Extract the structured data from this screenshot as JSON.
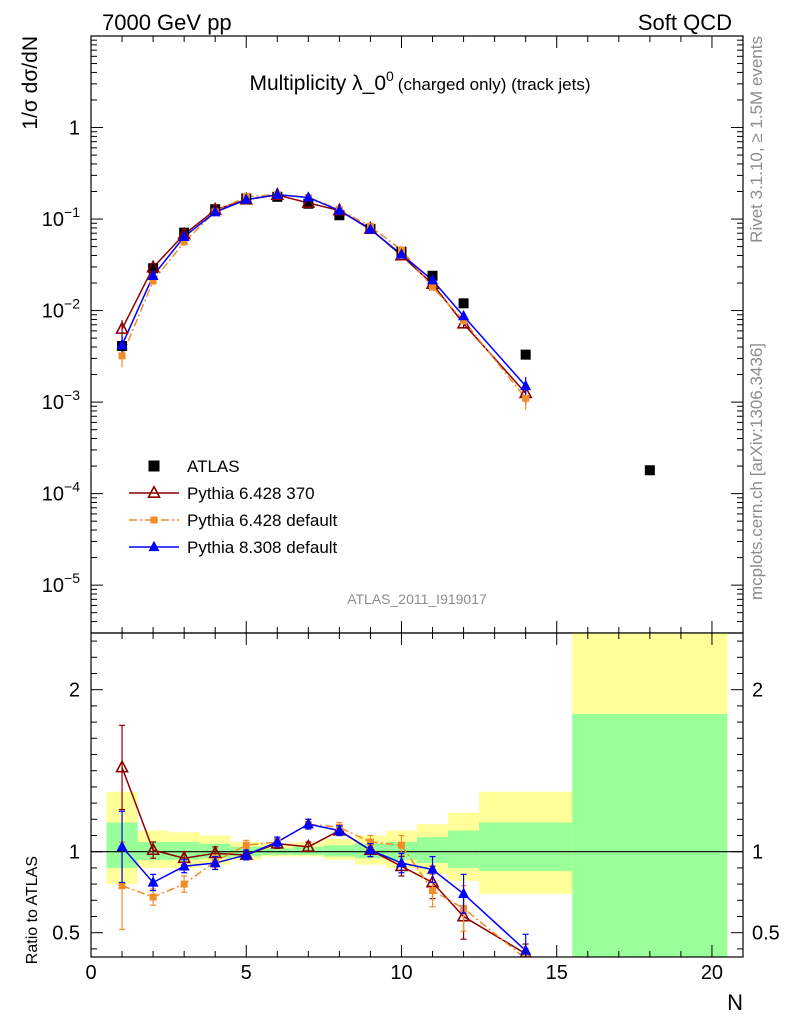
{
  "header": {
    "left": "7000 GeV pp",
    "right": "Soft QCD"
  },
  "side_labels": {
    "events": "Rivet 3.1.10, ≥ 1.5M events",
    "source": "mcplots.cern.ch [arXiv:1306.3436]"
  },
  "analysis_id": "ATLAS_2011_I919017",
  "chart_data": [
    {
      "type": "scatter",
      "panel": "main",
      "title": "Multiplicity λ_0⁰ (charged only) (track jets)",
      "title_main": "Multiplicity λ_0",
      "title_sup": "0",
      "title_paren": "(charged only) (track jets)",
      "ylabel": "1/σ dσ/dN",
      "yscale": "log",
      "ylim": [
        3e-06,
        10
      ],
      "xlim": [
        0,
        21
      ],
      "x_ticks": [
        "0",
        "5",
        "10",
        "15",
        "20"
      ],
      "y_ticks": [
        {
          "base": "10",
          "exp": "−5",
          "value": 1e-05
        },
        {
          "base": "10",
          "exp": "−4",
          "value": 0.0001
        },
        {
          "base": "10",
          "exp": "−3",
          "value": 0.001
        },
        {
          "base": "10",
          "exp": "−2",
          "value": 0.01
        },
        {
          "base": "10",
          "exp": "−1",
          "value": 0.1
        },
        {
          "base": "1",
          "exp": "",
          "value": 1
        }
      ],
      "legend_position": "middle-left",
      "series": [
        {
          "name": "ATLAS",
          "color": "#000000",
          "marker": "square",
          "x": [
            1,
            2,
            3,
            4,
            5,
            6,
            7,
            8,
            9,
            10,
            11,
            12,
            14,
            18
          ],
          "y": [
            0.0041,
            0.029,
            0.071,
            0.128,
            0.168,
            0.175,
            0.147,
            0.11,
            0.078,
            0.044,
            0.024,
            0.012,
            0.0033,
            0.00018
          ]
        },
        {
          "name": "Pythia 6.428 370",
          "color": "#8b0000",
          "marker": "open-triangle",
          "x": [
            1,
            2,
            3,
            4,
            5,
            6,
            7,
            8,
            9,
            10,
            11,
            12,
            14
          ],
          "y": [
            0.0063,
            0.0295,
            0.068,
            0.126,
            0.163,
            0.183,
            0.15,
            0.124,
            0.078,
            0.04,
            0.0195,
            0.0072,
            0.00125
          ]
        },
        {
          "name": "Pythia 6.428 default",
          "color": "#f28c28",
          "marker": "square",
          "x": [
            1,
            2,
            3,
            4,
            5,
            6,
            7,
            8,
            9,
            10,
            11,
            12,
            14
          ],
          "y": [
            0.0032,
            0.021,
            0.056,
            0.12,
            0.176,
            0.185,
            0.172,
            0.127,
            0.083,
            0.046,
            0.018,
            0.0078,
            0.0011
          ]
        },
        {
          "name": "Pythia 8.308 default",
          "color": "#0000ff",
          "marker": "triangle",
          "x": [
            1,
            2,
            3,
            4,
            5,
            6,
            7,
            8,
            9,
            10,
            11,
            12,
            14
          ],
          "y": [
            0.0042,
            0.024,
            0.064,
            0.119,
            0.163,
            0.185,
            0.172,
            0.124,
            0.077,
            0.041,
            0.0215,
            0.0087,
            0.0015
          ]
        }
      ]
    },
    {
      "type": "scatter",
      "panel": "ratio",
      "ylabel": "Ratio to ATLAS",
      "xlabel": "N",
      "ylim": [
        0.35,
        2.35
      ],
      "xlim": [
        0,
        21
      ],
      "x_ticks": [
        "0",
        "5",
        "10",
        "15",
        "20"
      ],
      "y_ticks": [
        "0.5",
        "1",
        "2"
      ],
      "bands": [
        {
          "x0": 0.5,
          "x1": 1.5,
          "y_lo": 0.8,
          "y_hi": 1.37,
          "g_lo": 0.9,
          "g_hi": 1.18
        },
        {
          "x0": 1.5,
          "x1": 2.5,
          "y_lo": 0.9,
          "y_hi": 1.13,
          "g_lo": 0.95,
          "g_hi": 1.06
        },
        {
          "x0": 2.5,
          "x1": 3.5,
          "y_lo": 0.9,
          "y_hi": 1.12,
          "g_lo": 0.95,
          "g_hi": 1.06
        },
        {
          "x0": 3.5,
          "x1": 4.5,
          "y_lo": 0.92,
          "y_hi": 1.1,
          "g_lo": 0.96,
          "g_hi": 1.05
        },
        {
          "x0": 4.5,
          "x1": 5.5,
          "y_lo": 0.95,
          "y_hi": 1.06,
          "g_lo": 0.97,
          "g_hi": 1.03
        },
        {
          "x0": 5.5,
          "x1": 6.5,
          "y_lo": 0.97,
          "y_hi": 1.05,
          "g_lo": 0.98,
          "g_hi": 1.02
        },
        {
          "x0": 6.5,
          "x1": 7.5,
          "y_lo": 0.97,
          "y_hi": 1.06,
          "g_lo": 0.98,
          "g_hi": 1.03
        },
        {
          "x0": 7.5,
          "x1": 8.5,
          "y_lo": 0.95,
          "y_hi": 1.08,
          "g_lo": 0.97,
          "g_hi": 1.04
        },
        {
          "x0": 8.5,
          "x1": 9.5,
          "y_lo": 0.92,
          "y_hi": 1.1,
          "g_lo": 0.96,
          "g_hi": 1.05
        },
        {
          "x0": 9.5,
          "x1": 10.5,
          "y_lo": 0.9,
          "y_hi": 1.13,
          "g_lo": 0.95,
          "g_hi": 1.06
        },
        {
          "x0": 10.5,
          "x1": 11.5,
          "y_lo": 0.86,
          "y_hi": 1.17,
          "g_lo": 0.93,
          "g_hi": 1.09
        },
        {
          "x0": 11.5,
          "x1": 12.5,
          "y_lo": 0.82,
          "y_hi": 1.24,
          "g_lo": 0.9,
          "g_hi": 1.13
        },
        {
          "x0": 12.5,
          "x1": 15.5,
          "y_lo": 0.74,
          "y_hi": 1.37,
          "g_lo": 0.88,
          "g_hi": 1.18
        },
        {
          "x0": 15.5,
          "x1": 20.5,
          "y_lo": 0.35,
          "y_hi": 2.35,
          "g_lo": 0.35,
          "g_hi": 1.85
        }
      ],
      "series": [
        {
          "name": "Pythia 6.428 370",
          "color": "#8b0000",
          "marker": "open-triangle",
          "x": [
            1,
            2,
            3,
            4,
            5,
            6,
            7,
            8,
            9,
            10,
            11,
            12,
            14
          ],
          "y": [
            1.52,
            1.01,
            0.96,
            0.99,
            0.98,
            1.05,
            1.03,
            1.13,
            1.01,
            0.91,
            0.81,
            0.6,
            0.37
          ],
          "err": [
            0.26,
            0.05,
            0.04,
            0.04,
            0.03,
            0.03,
            0.03,
            0.03,
            0.04,
            0.06,
            0.1,
            0.14,
            0.06
          ]
        },
        {
          "name": "Pythia 6.428 default",
          "color": "#f28c28",
          "marker": "square",
          "x": [
            1,
            2,
            3,
            4,
            5,
            6,
            7,
            8,
            9,
            10,
            11,
            12,
            14
          ],
          "y": [
            0.79,
            0.72,
            0.8,
            0.94,
            1.04,
            1.06,
            1.17,
            1.15,
            1.06,
            1.04,
            0.76,
            0.65,
            0.34
          ],
          "err": [
            0.27,
            0.05,
            0.05,
            0.04,
            0.03,
            0.03,
            0.03,
            0.03,
            0.04,
            0.06,
            0.1,
            0.14,
            0.06
          ]
        },
        {
          "name": "Pythia 8.308 default",
          "color": "#0000ff",
          "marker": "triangle",
          "x": [
            1,
            2,
            3,
            4,
            5,
            6,
            7,
            8,
            9,
            10,
            11,
            12,
            14
          ],
          "y": [
            1.03,
            0.81,
            0.91,
            0.93,
            0.98,
            1.06,
            1.17,
            1.13,
            1.01,
            0.93,
            0.89,
            0.74,
            0.39
          ],
          "err": [
            0.22,
            0.05,
            0.04,
            0.04,
            0.03,
            0.03,
            0.03,
            0.03,
            0.04,
            0.06,
            0.08,
            0.12,
            0.1
          ]
        }
      ]
    }
  ]
}
